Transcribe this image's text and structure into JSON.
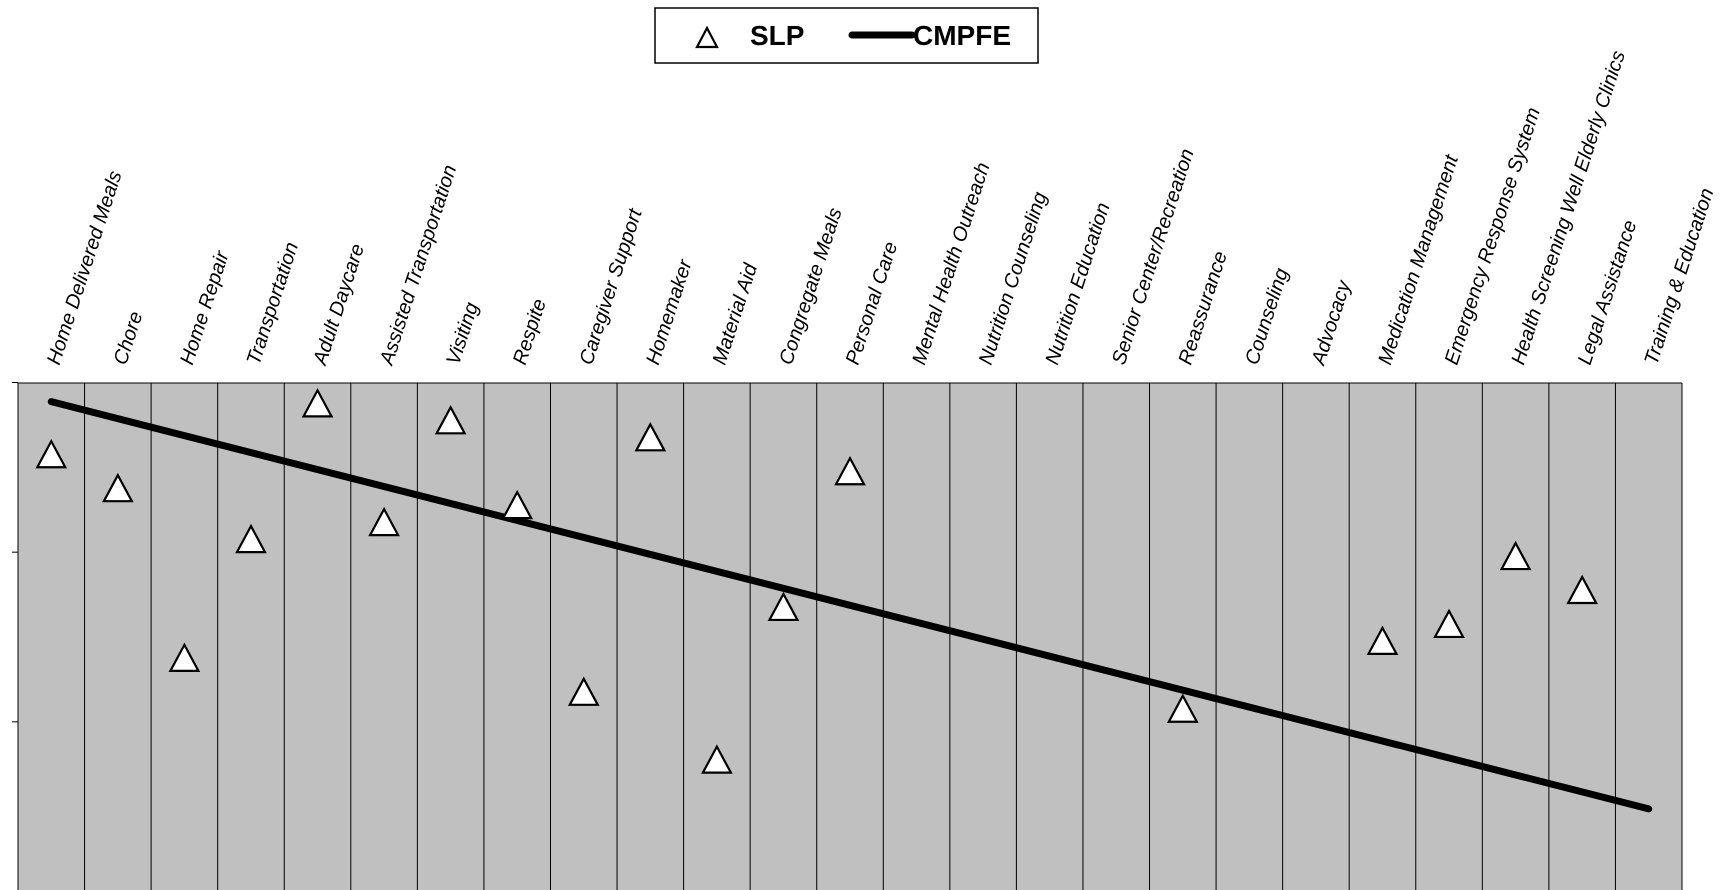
{
  "chart_data": {
    "type": "scatter",
    "title": "",
    "xlabel": "",
    "ylabel": "",
    "categories": [
      "Home Delivered Meals",
      "Chore",
      "Home Repair",
      "Transportation",
      "Adult Daycare",
      "Assisted Transportation",
      "Visiting",
      "Respite",
      "Caregiver Support",
      "Homemaker",
      "Material Aid",
      "Congregate Meals",
      "Personal Care",
      "Mental Health Outreach",
      "Nutrition Counseling",
      "Nutrition Education",
      "Senior Center/Recreation",
      "Reassurance",
      "Counseling",
      "Advocacy",
      "Medication Management",
      "Emergency Response System",
      "Health Screening Well Elderly Clinics",
      "Legal Assistance",
      "Training & Education"
    ],
    "ylim": [
      0,
      3
    ],
    "y_ticks": [
      3,
      2,
      1
    ],
    "y_tick_labels_shown": false,
    "grid": "vertical",
    "legend_position": "top-center",
    "legend": [
      {
        "label": "SLP",
        "marker": "triangle-open"
      },
      {
        "label": "CMPFE",
        "marker": "thick-line"
      }
    ],
    "series": [
      {
        "name": "SLP",
        "style": "markers",
        "values": [
          {
            "category": "Home Delivered Meals",
            "y": 2.58
          },
          {
            "category": "Chore",
            "y": 2.38
          },
          {
            "category": "Home Repair",
            "y": 1.38
          },
          {
            "category": "Transportation",
            "y": 2.08
          },
          {
            "category": "Adult Daycare",
            "y": 2.88
          },
          {
            "category": "Assisted Transportation",
            "y": 2.18
          },
          {
            "category": "Visiting",
            "y": 2.78
          },
          {
            "category": "Respite",
            "y": 2.28
          },
          {
            "category": "Caregiver Support",
            "y": 1.18
          },
          {
            "category": "Homemaker",
            "y": 2.68
          },
          {
            "category": "Material Aid",
            "y": 0.78
          },
          {
            "category": "Congregate Meals",
            "y": 1.68
          },
          {
            "category": "Personal Care",
            "y": 2.48
          },
          {
            "category": "Reassurance",
            "y": 1.08
          },
          {
            "category": "Medication Management",
            "y": 1.48
          },
          {
            "category": "Emergency Response System",
            "y": 1.58
          },
          {
            "category": "Health Screening Well Elderly Clinics",
            "y": 1.98
          },
          {
            "category": "Legal Assistance",
            "y": 1.78
          }
        ]
      },
      {
        "name": "CMPFE",
        "style": "line",
        "start": {
          "category": "Home Delivered Meals",
          "y": 2.89
        },
        "end": {
          "category": "Training & Education",
          "y": 0.49
        }
      }
    ],
    "colors": {
      "plot_background": "#c0c0c0",
      "page_background": "#ffffff",
      "marker_fill": "#ffffff",
      "marker_stroke": "#000000",
      "line": "#000000"
    }
  }
}
